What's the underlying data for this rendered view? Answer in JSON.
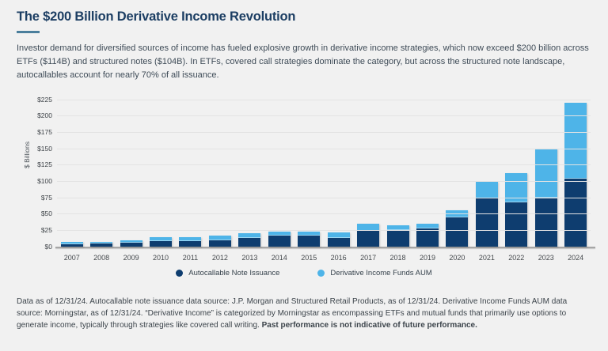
{
  "page": {
    "title": "The $200 Billion Derivative Income Revolution",
    "intro": "Investor demand for diversified sources of income has fueled explosive growth in derivative income strategies, which now exceed $200 billion across ETFs ($114B) and structured notes ($104B). In ETFs, covered call strategies dominate the category, but across the structured note landscape, autocallables account for nearly 70% of all issuance.",
    "footnote_regular": "Data as of 12/31/24. Autocallable note issuance data source: J.P. Morgan and Structured Retail Products, as of 12/31/24. Derivative Income Funds AUM data source: Morningstar, as of 12/31/24. “Derivative Income” is categorized by Morningstar as encompassing ETFs and mutual funds that primarily use options to generate income, typically through strategies like covered call writing. ",
    "footnote_bold": "Past performance is not indicative of future performance."
  },
  "colors": {
    "background": "#f1f1f1",
    "title": "#1c3e63",
    "accent_rule": "#4a7e9c",
    "autocallable_bar": "#0e3d6f",
    "aum_bar": "#4eb4e8",
    "gridline": "#e3e3e3",
    "axis_line": "#a6a6a6"
  },
  "chart_data": {
    "type": "bar",
    "stacked": true,
    "title": "",
    "xlabel": "",
    "ylabel": "$ Billions",
    "ylim": [
      0,
      225
    ],
    "ytick_step": 25,
    "ytick_prefix": "$",
    "grid": true,
    "legend_position": "bottom",
    "categories": [
      "2007",
      "2008",
      "2009",
      "2010",
      "2011",
      "2012",
      "2013",
      "2014",
      "2015",
      "2016",
      "2017",
      "2018",
      "2019",
      "2020",
      "2021",
      "2022",
      "2023",
      "2024"
    ],
    "series": [
      {
        "name": "Autocallable Note Issuance",
        "color": "#0e3d6f",
        "values": [
          3,
          4,
          6,
          8,
          8,
          9,
          13,
          17,
          17,
          13,
          24,
          25,
          27,
          44,
          73,
          67,
          75,
          104
        ]
      },
      {
        "name": "Derivative Income Funds AUM",
        "color": "#4eb4e8",
        "values": [
          2,
          1,
          2,
          5,
          5,
          6,
          6,
          4,
          4,
          7,
          9,
          6,
          7,
          10,
          25,
          44,
          73,
          114
        ]
      }
    ]
  }
}
